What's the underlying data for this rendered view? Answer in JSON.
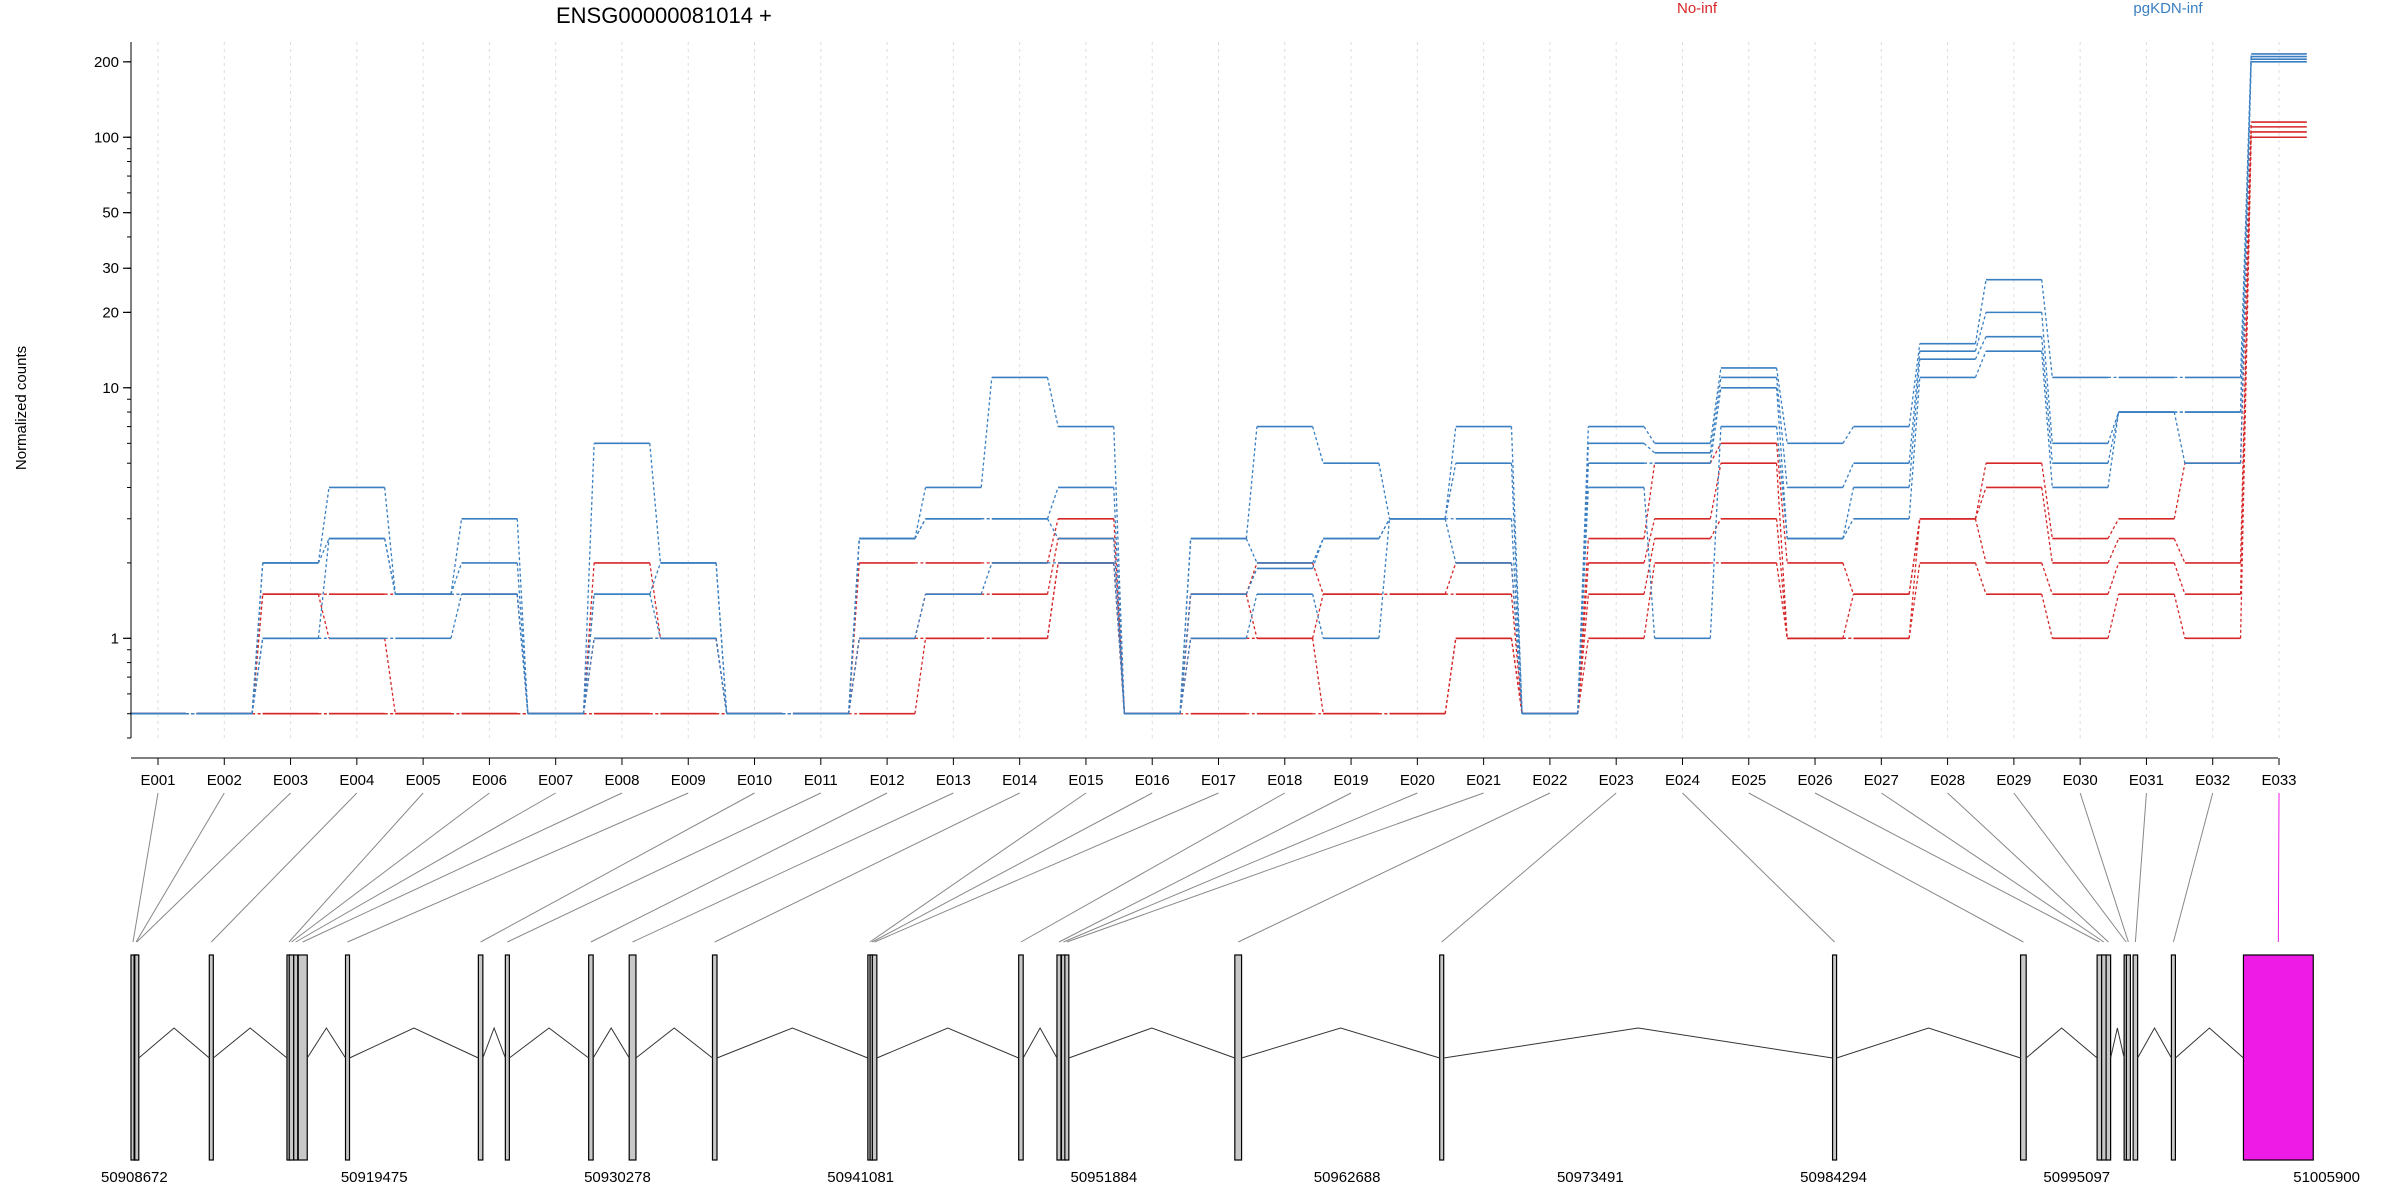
{
  "chart_data": [
    {
      "type": "line",
      "title": "ENSG00000081014 +",
      "xlabel": "",
      "ylabel": "Normalized counts",
      "y_scale": "log",
      "ylim": [
        0.4,
        240
      ],
      "yticks": [
        1,
        10,
        20,
        30,
        50,
        100,
        200
      ],
      "grid": "vertical dotted lines at each exon",
      "legend_placement": "top",
      "legend": [
        {
          "label": "No-inf",
          "color": "#d62728"
        },
        {
          "label": "pgKDN-inf",
          "color": "#3a7fc1"
        }
      ],
      "categories": [
        "E001",
        "E002",
        "E003",
        "E004",
        "E005",
        "E006",
        "E007",
        "E008",
        "E009",
        "E010",
        "E011",
        "E012",
        "E013",
        "E014",
        "E015",
        "E016",
        "E017",
        "E018",
        "E019",
        "E020",
        "E021",
        "E022",
        "E023",
        "E024",
        "E025",
        "E026",
        "E027",
        "E028",
        "E029",
        "E030",
        "E031",
        "E032",
        "E033"
      ],
      "series": [
        {
          "group": "No-inf",
          "color": "#d62728",
          "values": [
            0.5,
            0.5,
            0.5,
            0.5,
            0.5,
            0.5,
            0.5,
            0.5,
            0.5,
            0.5,
            0.5,
            0.5,
            1,
            1,
            2,
            0.5,
            0.5,
            0.5,
            0.5,
            0.5,
            1,
            0.5,
            1,
            2,
            2,
            1,
            1,
            2,
            1.5,
            1,
            1.5,
            1,
            100
          ]
        },
        {
          "group": "No-inf",
          "color": "#d62728",
          "values": [
            0.5,
            0.5,
            0.5,
            0.5,
            0.5,
            0.5,
            0.5,
            0.5,
            0.5,
            0.5,
            0.5,
            1,
            1,
            1,
            2,
            0.5,
            1,
            1,
            0.5,
            0.5,
            1,
            0.5,
            1.5,
            2.5,
            3,
            1,
            1,
            3,
            2,
            1.5,
            2,
            1.5,
            105
          ]
        },
        {
          "group": "No-inf",
          "color": "#d62728",
          "values": [
            0.5,
            0.5,
            1.5,
            1,
            0.5,
            0.5,
            0.5,
            1,
            1,
            0.5,
            0.5,
            1,
            1.5,
            1.5,
            2.5,
            0.5,
            1.5,
            1,
            1.5,
            1.5,
            1.5,
            0.5,
            2,
            3,
            5,
            1,
            1.5,
            3,
            4,
            2,
            2.5,
            2,
            110
          ]
        },
        {
          "group": "No-inf",
          "color": "#d62728",
          "values": [
            0.5,
            0.5,
            1.5,
            1.5,
            1.5,
            1.5,
            0.5,
            2,
            1,
            0.5,
            0.5,
            2,
            2,
            2,
            3,
            0.5,
            1.5,
            2,
            1.5,
            1.5,
            2,
            0.5,
            2.5,
            5,
            6,
            2,
            1.5,
            3,
            5,
            2.5,
            3,
            5,
            115
          ]
        },
        {
          "group": "pgKDN-inf",
          "color": "#3a7fc1",
          "values": [
            0.5,
            0.5,
            1,
            1,
            1,
            1.5,
            0.5,
            1,
            1,
            0.5,
            0.5,
            1,
            1.5,
            2,
            2,
            0.5,
            1,
            1.5,
            1,
            3,
            2,
            0.5,
            4,
            1,
            7,
            2.5,
            3,
            11,
            14,
            4,
            8,
            5,
            200
          ]
        },
        {
          "group": "pgKDN-inf",
          "color": "#3a7fc1",
          "values": [
            0.5,
            0.5,
            1,
            2.5,
            1.5,
            1.5,
            0.5,
            1.5,
            1,
            0.5,
            0.5,
            2.5,
            3,
            3,
            2.5,
            0.5,
            1.5,
            1.9,
            2.5,
            3,
            3,
            0.5,
            5,
            5,
            10,
            2.5,
            4,
            13,
            16,
            5,
            8,
            8,
            205
          ]
        },
        {
          "group": "pgKDN-inf",
          "color": "#3a7fc1",
          "values": [
            0.5,
            0.5,
            2,
            2.5,
            1.5,
            2,
            0.5,
            1.5,
            2,
            0.5,
            0.5,
            2.5,
            3,
            3,
            4,
            0.5,
            2.5,
            2,
            2.5,
            3,
            5,
            0.5,
            6,
            5.5,
            11,
            4,
            5,
            14,
            20,
            6,
            8,
            8,
            210
          ]
        },
        {
          "group": "pgKDN-inf",
          "color": "#3a7fc1",
          "values": [
            0.5,
            0.5,
            2,
            4,
            1.5,
            3,
            0.5,
            6,
            2,
            0.5,
            0.5,
            2.5,
            4,
            11,
            7,
            0.5,
            2.5,
            7,
            5,
            3,
            7,
            0.5,
            7,
            6,
            12,
            6,
            7,
            15,
            27,
            11,
            11,
            11,
            215
          ]
        }
      ]
    },
    {
      "type": "other",
      "description_kind": "gene-model",
      "x_axis_ticks": [
        "50908672",
        "50919475",
        "50930278",
        "50941081",
        "50951884",
        "50962688",
        "50973491",
        "50984294",
        "50995097",
        "51005900"
      ],
      "x_range": [
        50908672,
        51005900
      ],
      "exons": [
        {
          "id": "E001",
          "start": 50908672,
          "end": 50908810,
          "highlight": false
        },
        {
          "id": "E002",
          "start": 50908810,
          "end": 50908840,
          "highlight": false
        },
        {
          "id": "E003",
          "start": 50908840,
          "end": 50908900,
          "highlight": false
        },
        {
          "id": "E004",
          "start": 50912150,
          "end": 50912300,
          "highlight": false
        },
        {
          "id": "E005",
          "start": 50915600,
          "end": 50915700,
          "highlight": false
        },
        {
          "id": "E006",
          "start": 50915700,
          "end": 50915900,
          "highlight": false
        },
        {
          "id": "E007",
          "start": 50915900,
          "end": 50916000,
          "highlight": false
        },
        {
          "id": "E008",
          "start": 50916100,
          "end": 50916500,
          "highlight": false
        },
        {
          "id": "E009",
          "start": 50918200,
          "end": 50918300,
          "highlight": false
        },
        {
          "id": "E010",
          "start": 50924100,
          "end": 50924300,
          "highlight": false
        },
        {
          "id": "E011",
          "start": 50925300,
          "end": 50925400,
          "highlight": false
        },
        {
          "id": "E012",
          "start": 50929000,
          "end": 50929200,
          "highlight": false
        },
        {
          "id": "E013",
          "start": 50930800,
          "end": 50931100,
          "highlight": false
        },
        {
          "id": "E014",
          "start": 50934500,
          "end": 50934700,
          "highlight": false
        },
        {
          "id": "E015",
          "start": 50941400,
          "end": 50941500,
          "highlight": false
        },
        {
          "id": "E016",
          "start": 50941500,
          "end": 50941600,
          "highlight": false
        },
        {
          "id": "E017",
          "start": 50941600,
          "end": 50941800,
          "highlight": false
        },
        {
          "id": "E018",
          "start": 50948100,
          "end": 50948300,
          "highlight": false
        },
        {
          "id": "E019",
          "start": 50949800,
          "end": 50949950,
          "highlight": false
        },
        {
          "id": "E020",
          "start": 50950000,
          "end": 50950150,
          "highlight": false
        },
        {
          "id": "E021",
          "start": 50950150,
          "end": 50950300,
          "highlight": false
        },
        {
          "id": "E022",
          "start": 50957700,
          "end": 50958000,
          "highlight": false
        },
        {
          "id": "E023",
          "start": 50966800,
          "end": 50966950,
          "highlight": false
        },
        {
          "id": "E024",
          "start": 50984250,
          "end": 50984400,
          "highlight": false
        },
        {
          "id": "E025",
          "start": 50992600,
          "end": 50992850,
          "highlight": false
        },
        {
          "id": "E026",
          "start": 50996000,
          "end": 50996200,
          "highlight": false
        },
        {
          "id": "E027",
          "start": 50996200,
          "end": 50996400,
          "highlight": false
        },
        {
          "id": "E028",
          "start": 50996400,
          "end": 50996600,
          "highlight": false
        },
        {
          "id": "E029",
          "start": 50997200,
          "end": 50997300,
          "highlight": false
        },
        {
          "id": "E030",
          "start": 50997300,
          "end": 50997400,
          "highlight": false
        },
        {
          "id": "E031",
          "start": 50997600,
          "end": 50997800,
          "highlight": false
        },
        {
          "id": "E032",
          "start": 50999300,
          "end": 50999450,
          "highlight": false
        },
        {
          "id": "E033",
          "start": 51002500,
          "end": 51005600,
          "highlight": true,
          "color": "#ee1ae6"
        }
      ]
    }
  ]
}
